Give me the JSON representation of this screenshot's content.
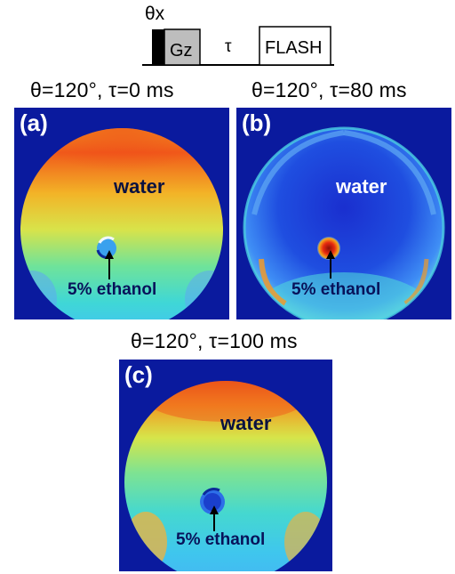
{
  "sequence": {
    "pulse_label": "θx",
    "gradient_label": "Gz",
    "delay_label": "τ",
    "readout_label": "FLASH"
  },
  "panels": [
    {
      "id": "a",
      "label": "(a)",
      "caption": "θ=120°, τ=0 ms",
      "water_label": "water",
      "ethanol_label": "5% ethanol"
    },
    {
      "id": "b",
      "label": "(b)",
      "caption": "θ=120°, τ=80 ms",
      "water_label": "water",
      "ethanol_label": "5% ethanol"
    },
    {
      "id": "c",
      "label": "(c)",
      "caption": "θ=120°, τ=100 ms",
      "water_label": "water",
      "ethanol_label": "5% ethanol"
    }
  ],
  "colors": {
    "background_blue": "#0a1a9e",
    "label_white": "#ffffff",
    "label_dark": "#0a1240",
    "arrow": "#000000"
  }
}
